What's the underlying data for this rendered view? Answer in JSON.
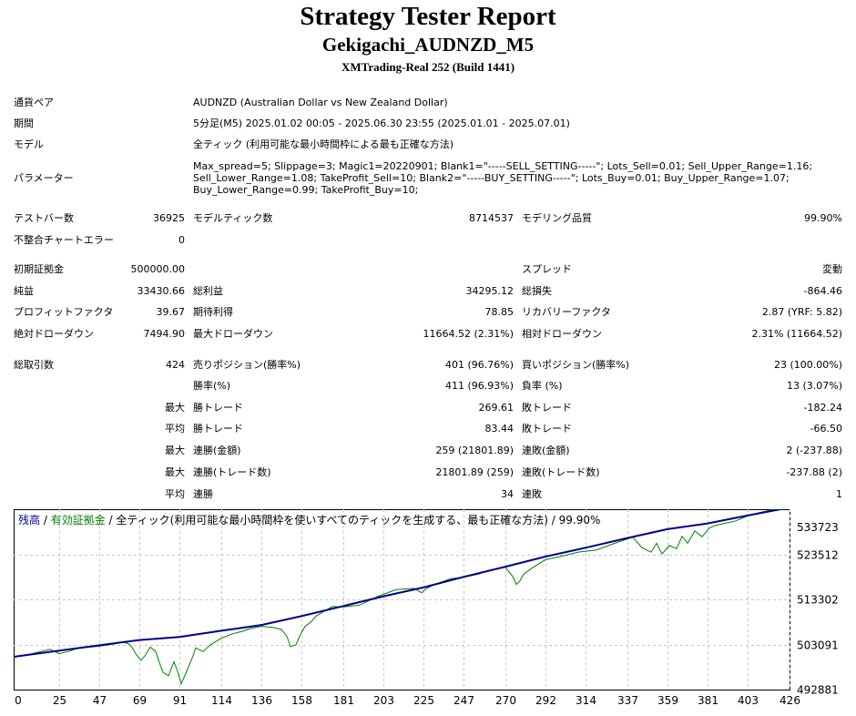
{
  "header": {
    "title": "Strategy Tester Report",
    "subtitle": "Gekigachi_AUDNZD_M5",
    "server": "XMTrading-Real 252 (Build 1441)"
  },
  "info": {
    "symbol_label": "通貨ペア",
    "symbol_value": "AUDNZD (Australian Dollar vs New Zealand Dollar)",
    "period_label": "期間",
    "period_value": "5分足(M5) 2025.01.02 00:05 - 2025.06.30 23:55 (2025.01.01 - 2025.07.01)",
    "model_label": "モデル",
    "model_value": "全ティック (利用可能な最小時間枠による最も正確な方法)",
    "params_label": "パラメーター",
    "params_line1": "Max_spread=5; Slippage=3; Magic1=20220901; Blank1=\"-----SELL_SETTING-----\"; Lots_Sell=0.01; Sell_Upper_Range=1.16;",
    "params_line2": "Sell_Lower_Range=1.08; TakeProfit_Sell=10; Blank2=\"-----BUY_SETTING-----\"; Lots_Buy=0.01; Buy_Upper_Range=1.07;",
    "params_line3": "Buy_Lower_Range=0.99; TakeProfit_Buy=10;"
  },
  "stats": {
    "bars_label": "テストバー数",
    "bars_value": "36925",
    "ticks_label": "モデルティック数",
    "ticks_value": "8714537",
    "quality_label": "モデリング品質",
    "quality_value": "99.90%",
    "mismatch_label": "不整合チャートエラー",
    "mismatch_value": "0",
    "deposit_label": "初期証拠金",
    "deposit_value": "500000.00",
    "spread_label": "スプレッド",
    "spread_value": "変動",
    "net_label": "純益",
    "net_value": "33430.66",
    "gross_profit_label": "総利益",
    "gross_profit_value": "34295.12",
    "gross_loss_label": "総損失",
    "gross_loss_value": "-864.46",
    "pf_label": "プロフィットファクタ",
    "pf_value": "39.67",
    "payoff_label": "期待利得",
    "payoff_value": "78.85",
    "recovery_label": "リカバリーファクタ",
    "recovery_value": "2.87 (YRF: 5.82)",
    "abs_dd_label": "絶対ドローダウン",
    "abs_dd_value": "7494.90",
    "max_dd_label": "最大ドローダウン",
    "max_dd_value": "11664.52 (2.31%)",
    "rel_dd_label": "相対ドローダウン",
    "rel_dd_value": "2.31% (11664.52)",
    "trades_label": "総取引数",
    "trades_value": "424",
    "short_label": "売りポジション(勝率%)",
    "short_value": "401 (96.76%)",
    "long_label": "買いポジション(勝率%)",
    "long_value": "23 (100.00%)",
    "winrate_label": "勝率(%)",
    "winrate_value": "411 (96.93%)",
    "lossrate_label": "負率 (%)",
    "lossrate_value": "13 (3.07%)",
    "max_word": "最大",
    "avg_word": "平均",
    "largest_win_label": "勝トレード",
    "largest_win_value": "269.61",
    "largest_loss_label": "敗トレード",
    "largest_loss_value": "-182.24",
    "avg_win_label": "勝トレード",
    "avg_win_value": "83.44",
    "avg_loss_label": "敗トレード",
    "avg_loss_value": "-66.50",
    "consec_win_money_label": "連勝(金額)",
    "consec_win_money_value": "259 (21801.89)",
    "consec_loss_money_label": "連敗(金額)",
    "consec_loss_money_value": "2 (-237.88)",
    "consec_win_trades_label": "連勝(トレード数)",
    "consec_win_trades_value": "21801.89 (259)",
    "consec_loss_trades_label": "連敗(トレード数)",
    "consec_loss_trades_value": "-237.88 (2)",
    "avg_consec_win_label": "連勝",
    "avg_consec_win_value": "34",
    "avg_consec_loss_label": "連敗",
    "avg_consec_loss_value": "1"
  },
  "chart_data": {
    "type": "line",
    "legend": {
      "balance": "残高",
      "sep1": " / ",
      "equity": "有効証拠金",
      "rest": " / 全ティック(利用可能な最小時間枠を使いすべてのティックを生成する、最も正確な方法) / 99.90%"
    },
    "xticks": [
      "0",
      "25",
      "47",
      "69",
      "91",
      "114",
      "136",
      "158",
      "181",
      "203",
      "225",
      "247",
      "270",
      "292",
      "314",
      "337",
      "359",
      "381",
      "403",
      "426"
    ],
    "yticks": [
      "533723",
      "523512",
      "513302",
      "503091",
      "492881"
    ],
    "ylim": [
      492881,
      533723
    ],
    "xlim": [
      0,
      426
    ],
    "colors": {
      "balance": "#00008b",
      "equity": "#008000",
      "balance_text": "#00008b",
      "equity_text": "#008000"
    },
    "series": [
      {
        "name": "残高",
        "x": [
          0,
          25,
          47,
          69,
          91,
          114,
          136,
          158,
          181,
          203,
          225,
          247,
          270,
          292,
          314,
          337,
          359,
          381,
          403,
          426
        ],
        "values": [
          500300,
          501700,
          502900,
          504100,
          504800,
          506200,
          507500,
          509500,
          511800,
          514000,
          516000,
          518400,
          520700,
          523000,
          525000,
          527200,
          529200,
          530500,
          532300,
          534100
        ]
      },
      {
        "name": "有効証拠金",
        "x": [
          0,
          10,
          20,
          25,
          30,
          35,
          47,
          55,
          60,
          63,
          65,
          67,
          70,
          72,
          75,
          78,
          80,
          82,
          85,
          88,
          90,
          92,
          95,
          98,
          100,
          104,
          108,
          114,
          120,
          125,
          130,
          136,
          142,
          147,
          150,
          152,
          155,
          157,
          160,
          163,
          166,
          170,
          175,
          181,
          190,
          200,
          210,
          220,
          224,
          226,
          230,
          240,
          247,
          255,
          262,
          270,
          274,
          276,
          278,
          280,
          285,
          292,
          300,
          310,
          320,
          330,
          340,
          345,
          350,
          353,
          356,
          360,
          364,
          367,
          370,
          374,
          378,
          382,
          385,
          390,
          396,
          403,
          410,
          420,
          426
        ],
        "values": [
          500200,
          501000,
          502000,
          501000,
          501500,
          502200,
          502700,
          503200,
          503600,
          503300,
          502500,
          501000,
          499500,
          500500,
          502500,
          501500,
          499000,
          496800,
          496000,
          499200,
          497000,
          494200,
          497000,
          500000,
          502300,
          501500,
          503000,
          504500,
          505500,
          506000,
          506700,
          507200,
          507000,
          506500,
          505000,
          502600,
          503000,
          505000,
          507200,
          508100,
          509500,
          510500,
          511700,
          511600,
          512000,
          514000,
          515500,
          515800,
          514800,
          515600,
          516500,
          518000,
          518300,
          519000,
          520000,
          520600,
          518500,
          516700,
          517500,
          519000,
          520500,
          522300,
          523000,
          524000,
          524500,
          526000,
          527400,
          525000,
          524000,
          526000,
          523600,
          525500,
          524800,
          527600,
          526000,
          528800,
          527500,
          529500,
          530000,
          530500,
          531000,
          532200,
          533000,
          533900,
          534100
        ]
      }
    ]
  }
}
